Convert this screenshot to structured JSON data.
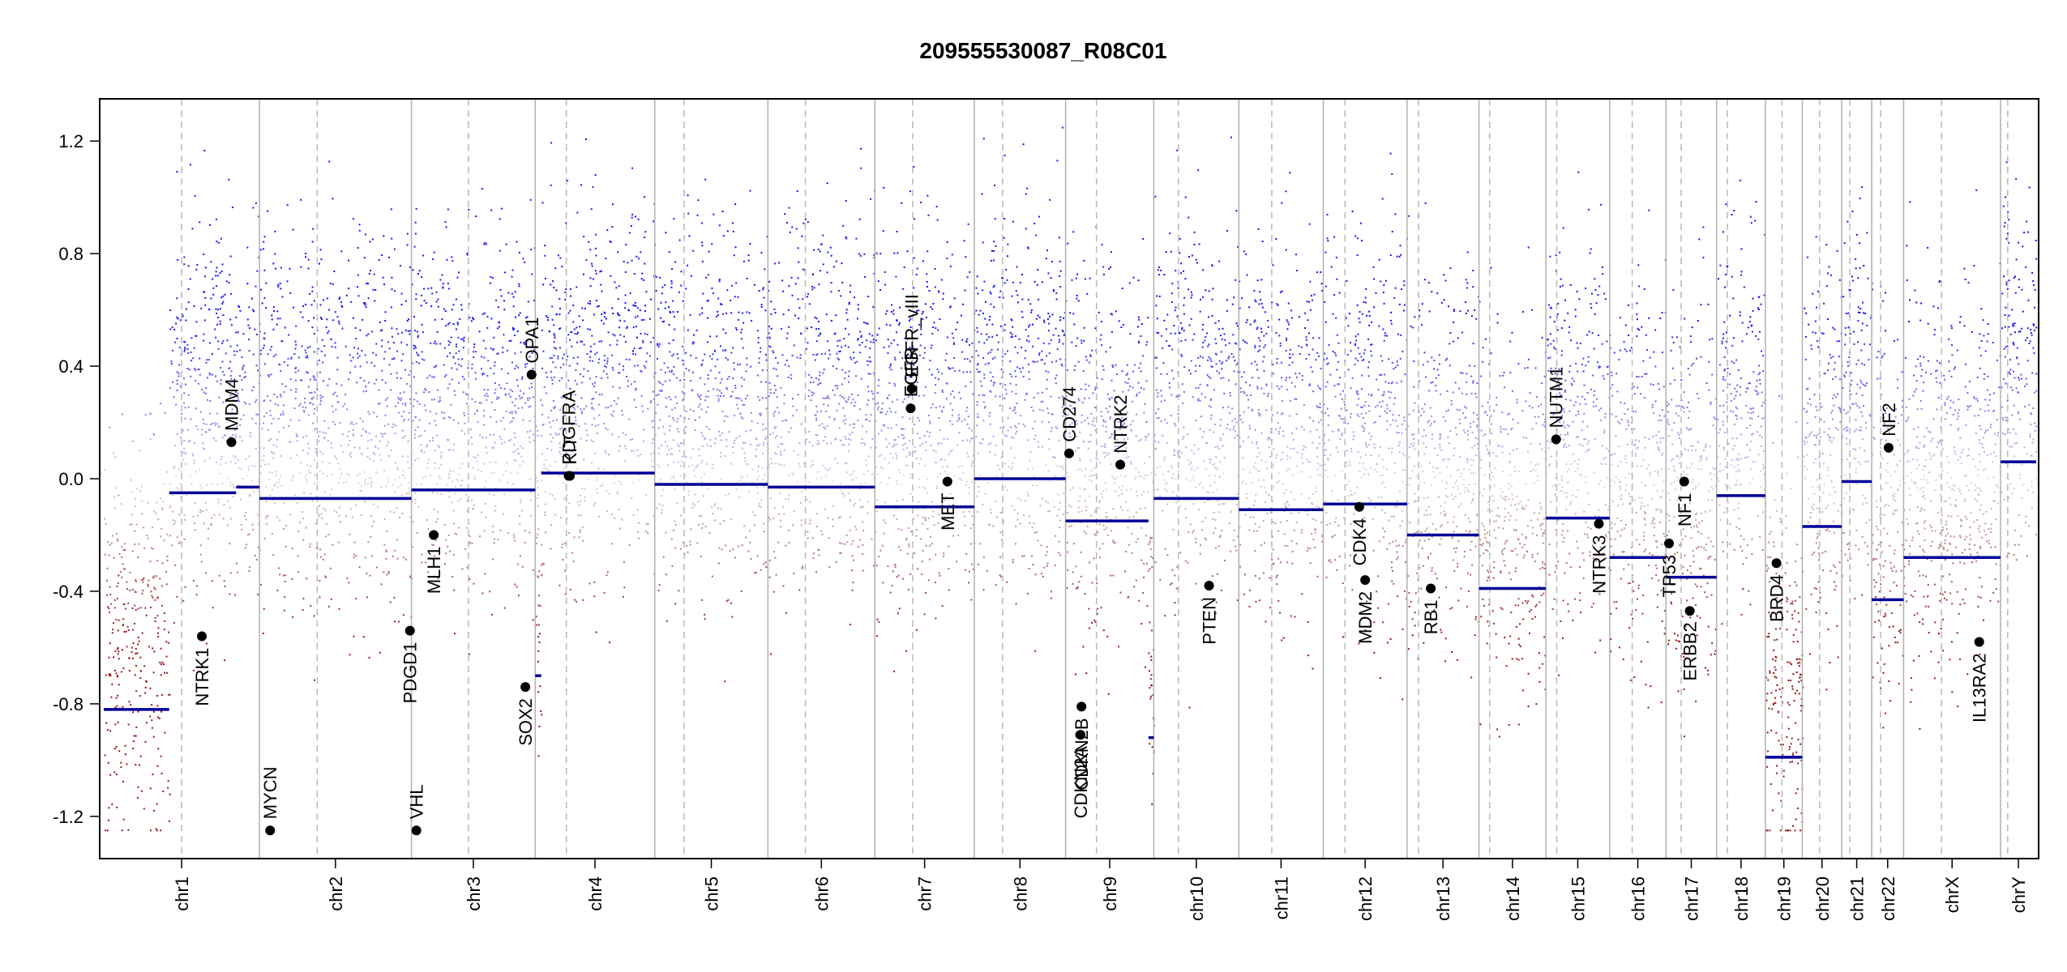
{
  "chart_data": {
    "type": "scatter",
    "title": "209555530087_R08C01",
    "xlabel": "",
    "ylabel": "",
    "ylim": [
      -1.35,
      1.35
    ],
    "y_ticks": [
      1.2,
      0.8,
      0.4,
      0.0,
      -0.4,
      -0.8,
      -1.2
    ],
    "y_tick_labels": [
      "1.2",
      "0.8",
      "0.4",
      "0.0",
      "-0.4",
      "-0.8",
      "-1.2"
    ],
    "chromosomes": [
      {
        "name": "chr1",
        "size": 249,
        "centromere": 0.5,
        "segments": [
          [
            0,
            0.42,
            -0.82
          ],
          [
            0.42,
            0.85,
            -0.05
          ],
          [
            0.85,
            1.0,
            -0.03
          ]
        ]
      },
      {
        "name": "chr2",
        "size": 243,
        "centromere": 0.38,
        "segments": [
          [
            0,
            1,
            -0.07
          ]
        ]
      },
      {
        "name": "chr3",
        "size": 198,
        "centromere": 0.46,
        "segments": [
          [
            0,
            1,
            -0.04
          ]
        ]
      },
      {
        "name": "chr4",
        "size": 191,
        "centromere": 0.26,
        "segments": [
          [
            0,
            0.05,
            -0.7
          ],
          [
            0.05,
            1,
            0.02
          ]
        ]
      },
      {
        "name": "chr5",
        "size": 181,
        "centromere": 0.26,
        "segments": [
          [
            0,
            1,
            -0.02
          ]
        ]
      },
      {
        "name": "chr6",
        "size": 171,
        "centromere": 0.35,
        "segments": [
          [
            0,
            1,
            -0.03
          ]
        ]
      },
      {
        "name": "chr7",
        "size": 159,
        "centromere": 0.38,
        "segments": [
          [
            0,
            1,
            -0.1
          ]
        ]
      },
      {
        "name": "chr8",
        "size": 146,
        "centromere": 0.31,
        "segments": [
          [
            0,
            1,
            0.0
          ]
        ]
      },
      {
        "name": "chr9",
        "size": 141,
        "centromere": 0.35,
        "segments": [
          [
            0,
            0.94,
            -0.15
          ],
          [
            0.94,
            1,
            -0.92
          ]
        ]
      },
      {
        "name": "chr10",
        "size": 136,
        "centromere": 0.29,
        "segments": [
          [
            0,
            1,
            -0.07
          ]
        ]
      },
      {
        "name": "chr11",
        "size": 135,
        "centromere": 0.39,
        "segments": [
          [
            0,
            1,
            -0.11
          ]
        ]
      },
      {
        "name": "chr12",
        "size": 134,
        "centromere": 0.26,
        "segments": [
          [
            0,
            1,
            -0.09
          ]
        ]
      },
      {
        "name": "chr13",
        "size": 115,
        "centromere": 0.16,
        "segments": [
          [
            0,
            1,
            -0.2
          ]
        ]
      },
      {
        "name": "chr14",
        "size": 107,
        "centromere": 0.16,
        "segments": [
          [
            0,
            1,
            -0.39
          ]
        ]
      },
      {
        "name": "chr15",
        "size": 102,
        "centromere": 0.17,
        "segments": [
          [
            0,
            1,
            -0.14
          ]
        ]
      },
      {
        "name": "chr16",
        "size": 90,
        "centromere": 0.4,
        "segments": [
          [
            0,
            1,
            -0.28
          ]
        ]
      },
      {
        "name": "chr17",
        "size": 81,
        "centromere": 0.3,
        "segments": [
          [
            0,
            1,
            -0.35
          ]
        ]
      },
      {
        "name": "chr18",
        "size": 78,
        "centromere": 0.22,
        "segments": [
          [
            0,
            1,
            -0.06
          ]
        ]
      },
      {
        "name": "chr19",
        "size": 59,
        "centromere": 0.45,
        "segments": [
          [
            0,
            1,
            -0.99
          ]
        ]
      },
      {
        "name": "chr20",
        "size": 63,
        "centromere": 0.44,
        "segments": [
          [
            0,
            1,
            -0.17
          ]
        ]
      },
      {
        "name": "chr21",
        "size": 48,
        "centromere": 0.27,
        "segments": [
          [
            0,
            1,
            -0.01
          ]
        ]
      },
      {
        "name": "chr22",
        "size": 51,
        "centromere": 0.28,
        "segments": [
          [
            0,
            1,
            -0.43
          ]
        ]
      },
      {
        "name": "chrX",
        "size": 155,
        "centromere": 0.39,
        "segments": [
          [
            0,
            1,
            -0.28
          ]
        ]
      },
      {
        "name": "chrY",
        "size": 57,
        "centromere": 0.2,
        "segments": [
          [
            0,
            1,
            0.06
          ]
        ]
      }
    ],
    "genes": [
      {
        "name": "NTRK1",
        "chr": "chr1",
        "pos": 0.63,
        "value": -0.56,
        "label_side": "below"
      },
      {
        "name": "MDM4",
        "chr": "chr1",
        "pos": 0.82,
        "value": 0.13,
        "label_side": "above"
      },
      {
        "name": "MYCN",
        "chr": "chr2",
        "pos": 0.07,
        "value": -1.25,
        "label_side": "above"
      },
      {
        "name": "PDGD1",
        "chr": "chr2",
        "pos": 0.99,
        "value": -0.54,
        "label_side": "below"
      },
      {
        "name": "VHL",
        "chr": "chr3",
        "pos": 0.04,
        "value": -1.25,
        "label_side": "above"
      },
      {
        "name": "MLH1",
        "chr": "chr3",
        "pos": 0.18,
        "value": -0.2,
        "label_side": "below"
      },
      {
        "name": "SOX2",
        "chr": "chr3",
        "pos": 0.92,
        "value": -0.74,
        "label_side": "below"
      },
      {
        "name": "OPA1",
        "chr": "chr3",
        "pos": 0.97,
        "value": 0.37,
        "label_side": "above"
      },
      {
        "name": "PDGFRA",
        "chr": "chr4",
        "pos": 0.28,
        "value": 0.01,
        "label_side": "above"
      },
      {
        "name": "KIT",
        "chr": "chr4",
        "pos": 0.29,
        "value": 0.01,
        "label_side": "above"
      },
      {
        "name": "EGFR",
        "chr": "chr7",
        "pos": 0.36,
        "value": 0.25,
        "label_side": "above"
      },
      {
        "name": "EGFR_vIII",
        "chr": "chr7",
        "pos": 0.37,
        "value": 0.32,
        "label_side": "above"
      },
      {
        "name": "MET",
        "chr": "chr7",
        "pos": 0.73,
        "value": -0.01,
        "label_side": "below"
      },
      {
        "name": "CD274",
        "chr": "chr9",
        "pos": 0.04,
        "value": 0.09,
        "label_side": "above"
      },
      {
        "name": "CDKN2A",
        "chr": "chr9",
        "pos": 0.17,
        "value": -0.91,
        "label_side": "below"
      },
      {
        "name": "CDKN2B",
        "chr": "chr9",
        "pos": 0.18,
        "value": -0.81,
        "label_side": "below"
      },
      {
        "name": "NTRK2",
        "chr": "chr9",
        "pos": 0.62,
        "value": 0.05,
        "label_side": "above"
      },
      {
        "name": "PTEN",
        "chr": "chr10",
        "pos": 0.65,
        "value": -0.38,
        "label_side": "below"
      },
      {
        "name": "CDK4",
        "chr": "chr12",
        "pos": 0.43,
        "value": -0.1,
        "label_side": "below"
      },
      {
        "name": "MDM2",
        "chr": "chr12",
        "pos": 0.5,
        "value": -0.36,
        "label_side": "below"
      },
      {
        "name": "RB1",
        "chr": "chr13",
        "pos": 0.33,
        "value": -0.39,
        "label_side": "below"
      },
      {
        "name": "NUTM1",
        "chr": "chr15",
        "pos": 0.16,
        "value": 0.14,
        "label_side": "above"
      },
      {
        "name": "NTRK3",
        "chr": "chr15",
        "pos": 0.83,
        "value": -0.16,
        "label_side": "below"
      },
      {
        "name": "TP53",
        "chr": "chr17",
        "pos": 0.06,
        "value": -0.23,
        "label_side": "below"
      },
      {
        "name": "NF1",
        "chr": "chr17",
        "pos": 0.36,
        "value": -0.01,
        "label_side": "below"
      },
      {
        "name": "ERBB2",
        "chr": "chr17",
        "pos": 0.47,
        "value": -0.47,
        "label_side": "below"
      },
      {
        "name": "BRD4",
        "chr": "chr19",
        "pos": 0.3,
        "value": -0.3,
        "label_side": "below"
      },
      {
        "name": "NF2",
        "chr": "chr22",
        "pos": 0.53,
        "value": 0.11,
        "label_side": "above"
      },
      {
        "name": "IL13RA2",
        "chr": "chrX",
        "pos": 0.78,
        "value": -0.58,
        "label_side": "below"
      }
    ],
    "grid": false,
    "legend": "none"
  }
}
